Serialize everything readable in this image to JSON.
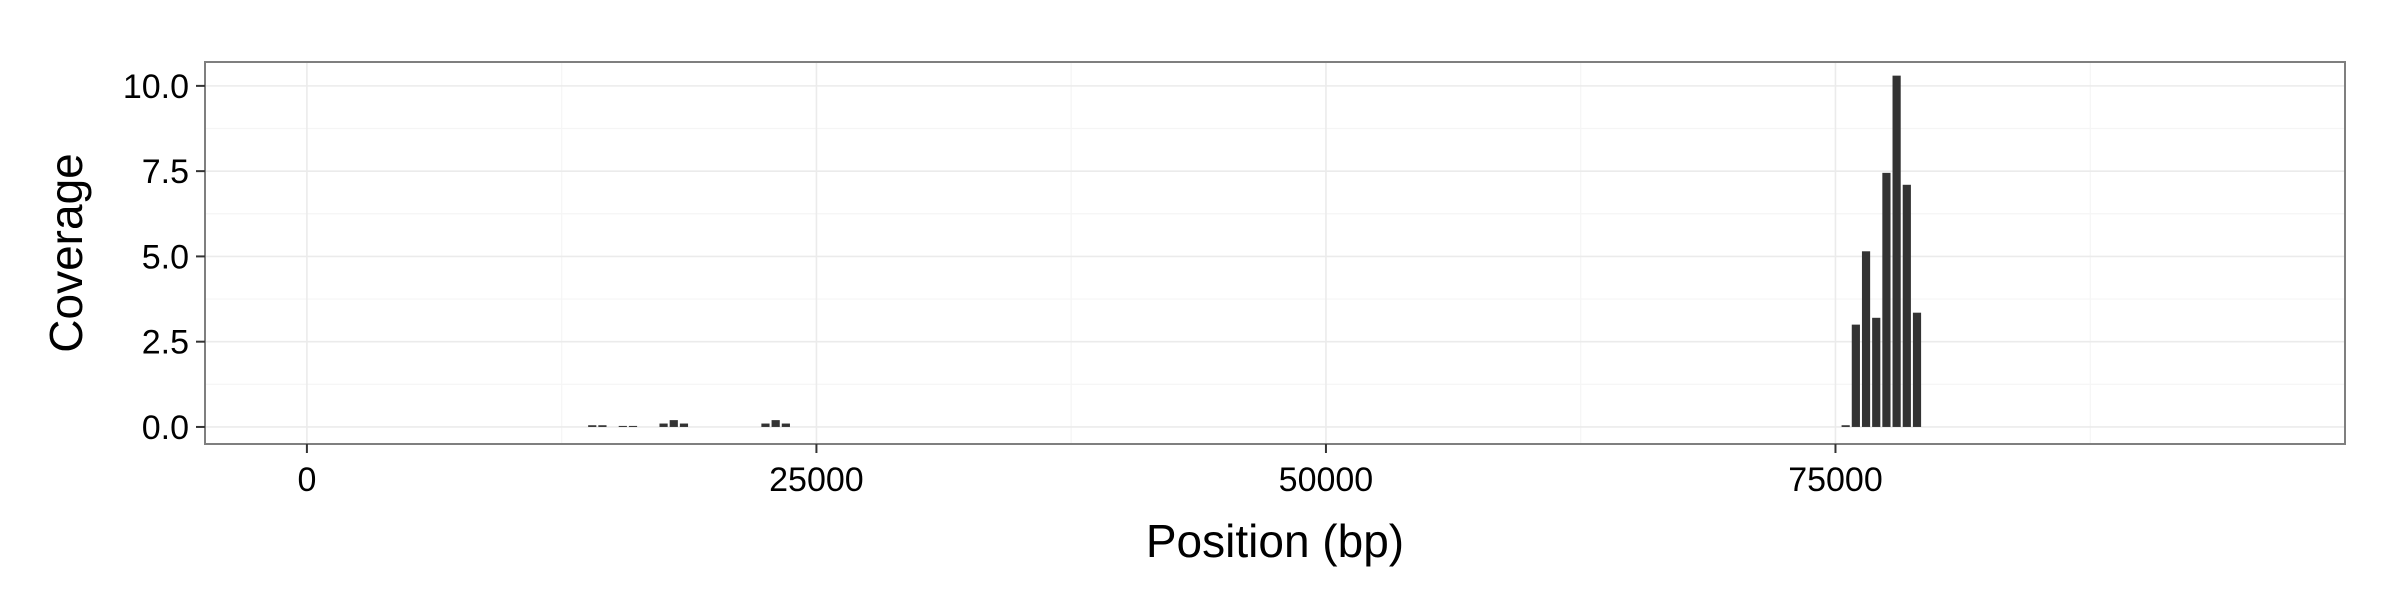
{
  "chart_data": {
    "type": "bar",
    "title": "",
    "xlabel": "Position (bp)",
    "ylabel": "Coverage",
    "xlim": [
      -5000,
      100000
    ],
    "ylim": [
      -0.5,
      10.7
    ],
    "grid": true,
    "x_ticks": [
      {
        "value": 0,
        "label": "0"
      },
      {
        "value": 25000,
        "label": "25000"
      },
      {
        "value": 50000,
        "label": "50000"
      },
      {
        "value": 75000,
        "label": "75000"
      }
    ],
    "y_ticks": [
      {
        "value": 0,
        "label": "0.0"
      },
      {
        "value": 2.5,
        "label": "2.5"
      },
      {
        "value": 5,
        "label": "5.0"
      },
      {
        "value": 7.5,
        "label": "7.5"
      },
      {
        "value": 10,
        "label": "10.0"
      }
    ],
    "bin_width": 500,
    "x": [
      14000,
      14500,
      15500,
      16000,
      17500,
      18000,
      18500,
      22500,
      23000,
      23500,
      75500,
      76000,
      76500,
      77000,
      77500,
      78000,
      78500,
      79000
    ],
    "values": [
      0.05,
      0.05,
      0.03,
      0.03,
      0.1,
      0.2,
      0.1,
      0.1,
      0.2,
      0.1,
      0.05,
      3.0,
      5.15,
      3.2,
      7.45,
      10.3,
      7.1,
      3.35
    ],
    "colors": {
      "bar": "#333333",
      "panel_border": "#7f7f7f",
      "grid_major": "#ebebeb",
      "grid_minor": "#f5f5f5",
      "axis_tick": "#333333"
    }
  }
}
